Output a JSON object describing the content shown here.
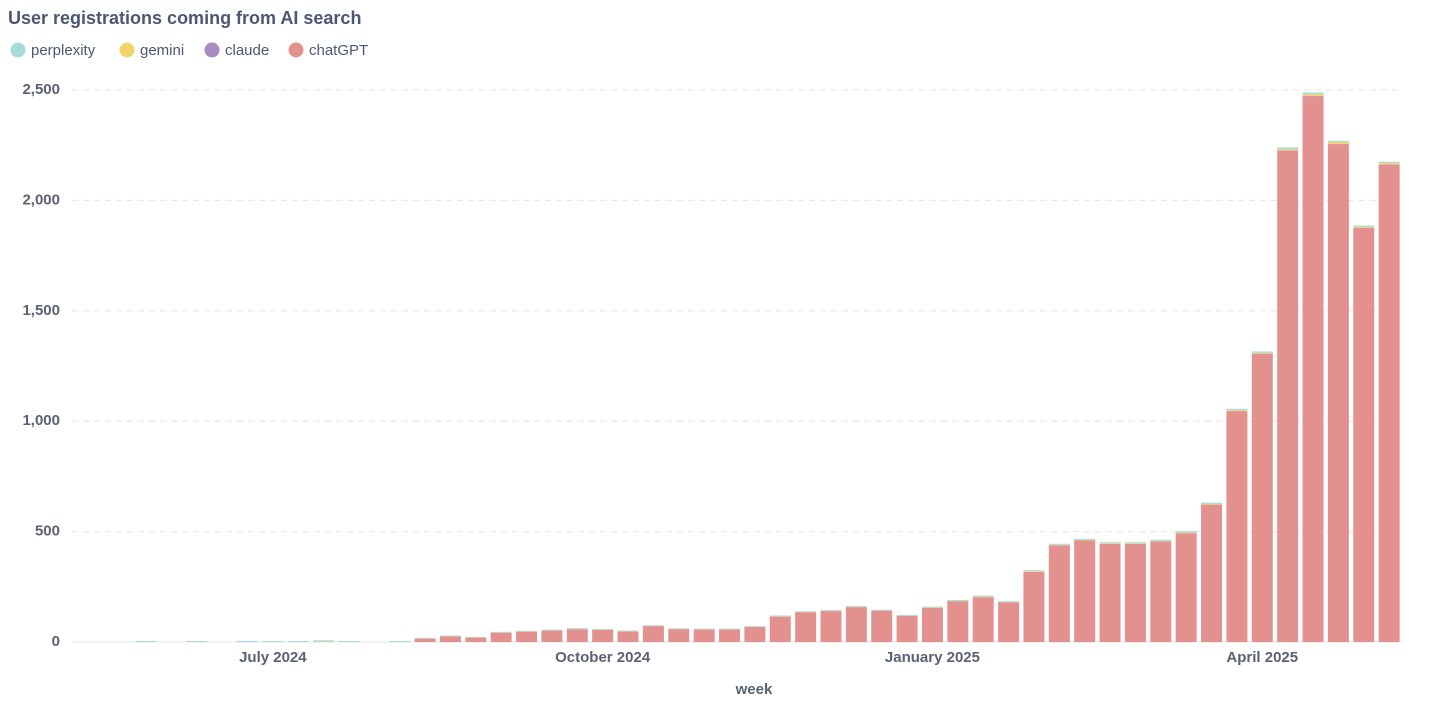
{
  "chart_data": {
    "type": "stacked-bar",
    "title": "User registrations coming from AI search",
    "x_label": "week",
    "categories": [
      null,
      null,
      null,
      null,
      null,
      "July 2024",
      null,
      null,
      null,
      null,
      null,
      null,
      null,
      null,
      null,
      null,
      null,
      null,
      "October 2024",
      null,
      null,
      null,
      null,
      null,
      null,
      null,
      null,
      null,
      null,
      null,
      null,
      "January 2025",
      null,
      null,
      null,
      null,
      null,
      null,
      null,
      null,
      null,
      null,
      null,
      null,
      "April 2025",
      null,
      null,
      null,
      null,
      null
    ],
    "series": [
      {
        "name": "perplexity",
        "color": "#a7dbd8",
        "values": [
          5,
          0,
          5,
          0,
          5,
          5,
          5,
          6,
          5,
          0,
          5,
          3,
          3,
          2,
          3,
          3,
          3,
          4,
          3,
          3,
          3,
          3,
          3,
          3,
          3,
          4,
          3,
          4,
          4,
          3,
          4,
          4,
          4,
          5,
          4,
          5,
          5,
          5,
          5,
          5,
          6,
          6,
          6,
          6,
          6,
          8,
          8,
          6,
          6,
          6
        ]
      },
      {
        "name": "gemini",
        "color": "#f2d36c",
        "values": [
          0,
          0,
          0,
          0,
          0,
          0,
          0,
          2,
          0,
          0,
          0,
          1,
          1,
          1,
          1,
          1,
          1,
          1,
          1,
          1,
          1,
          1,
          1,
          1,
          1,
          1,
          1,
          1,
          1,
          1,
          1,
          1,
          1,
          2,
          1,
          2,
          2,
          2,
          2,
          2,
          2,
          3,
          3,
          4,
          4,
          6,
          8,
          8,
          4,
          6
        ]
      },
      {
        "name": "claude",
        "color": "#a98bc6",
        "values": [
          0,
          0,
          0,
          0,
          0,
          0,
          0,
          0,
          0,
          0,
          0,
          0,
          0,
          0,
          0,
          0,
          0,
          0,
          0,
          0,
          0,
          0,
          0,
          0,
          0,
          0,
          0,
          0,
          0,
          0,
          0,
          0,
          0,
          0,
          0,
          0,
          0,
          0,
          0,
          0,
          0,
          0,
          0,
          1,
          1,
          1,
          1,
          1,
          1,
          1
        ]
      },
      {
        "name": "chatGPT",
        "color": "#e3918f",
        "values": [
          0,
          0,
          0,
          0,
          0,
          0,
          0,
          0,
          0,
          0,
          0,
          15,
          25,
          20,
          42,
          47,
          52,
          58,
          55,
          48,
          72,
          58,
          57,
          57,
          68,
          115,
          135,
          140,
          158,
          142,
          118,
          155,
          185,
          203,
          180,
          318,
          438,
          460,
          445,
          445,
          455,
          493,
          622,
          1045,
          1305,
          2225,
          2472,
          2255,
          1875,
          2162
        ]
      }
    ],
    "ylim": [
      0,
      2500
    ],
    "yticks": [
      0,
      500,
      {
        "value": 1000,
        "label": "1,000"
      },
      {
        "value": 1500,
        "label": "1,500"
      },
      {
        "value": 2000,
        "label": "2,000"
      },
      {
        "value": 2500,
        "label": "2,500"
      }
    ],
    "grid": true
  }
}
